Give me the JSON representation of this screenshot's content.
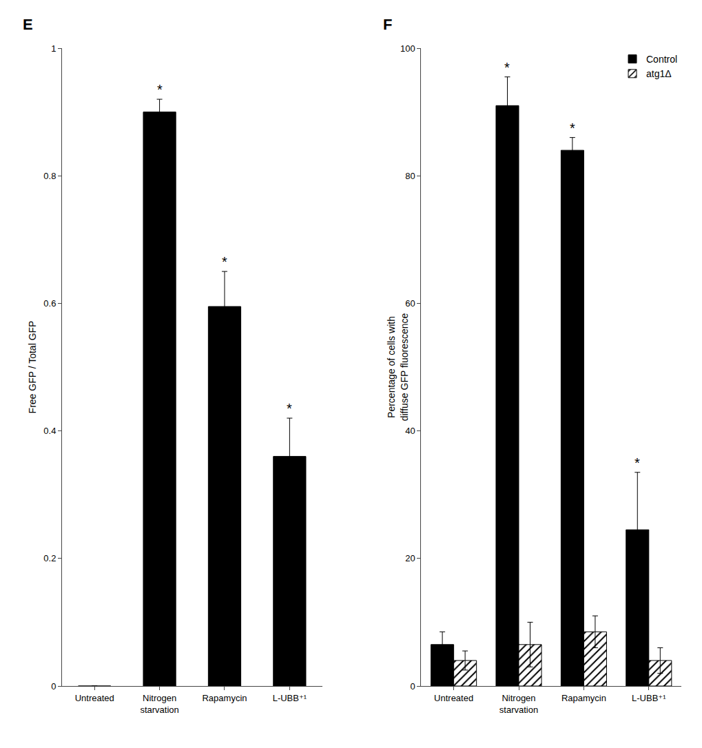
{
  "chart_data": [
    {
      "type": "bar",
      "title": "E",
      "categories": [
        "Untreated",
        "Nitrogen\nstarvation",
        "Rapamycin",
        "L-UBB⁺¹"
      ],
      "values": [
        0.0,
        0.9,
        0.595,
        0.36
      ],
      "errors": [
        0.0,
        0.02,
        0.055,
        0.06
      ],
      "color": "#000000",
      "ylabel": "Free GFP / Total GFP",
      "ylim": [
        0,
        1.0
      ],
      "yticks": [
        0,
        0.2,
        0.4,
        0.6,
        0.8,
        1
      ],
      "grid": false,
      "annotations": [
        {
          "text": "*",
          "category": "Nitrogen\nstarvation"
        },
        {
          "text": "*",
          "category": "Rapamycin"
        },
        {
          "text": "*",
          "category": "L-UBB⁺¹"
        }
      ]
    },
    {
      "type": "bar",
      "title": "F",
      "categories": [
        "Untreated",
        "Nitrogen\nstarvation",
        "Rapamycin",
        "L-UBB⁺¹"
      ],
      "series": [
        {
          "name": "Control",
          "color": "#000000",
          "values": [
            6.5,
            91.0,
            84.0,
            24.5
          ],
          "errors": [
            2.0,
            4.5,
            2.0,
            9.0
          ]
        },
        {
          "name": "atg1Δ",
          "color": "#ffffff",
          "marker": "hatch",
          "values": [
            4.0,
            6.5,
            8.5,
            4.0
          ],
          "errors": [
            1.5,
            3.5,
            2.5,
            2.0
          ]
        }
      ],
      "ylabel": "Percentage of cells with\ndiffuse GFP fluorescence",
      "ylim": [
        0,
        100
      ],
      "yticks": [
        0,
        20,
        40,
        60,
        80,
        100
      ],
      "grid": false,
      "legend": "upper right",
      "annotations": [
        {
          "text": "*",
          "category": "Nitrogen\nstarvation",
          "series": "Control"
        },
        {
          "text": "*",
          "category": "Rapamycin",
          "series": "Control"
        },
        {
          "text": "*",
          "category": "L-UBB⁺¹",
          "series": "Control"
        }
      ]
    }
  ]
}
